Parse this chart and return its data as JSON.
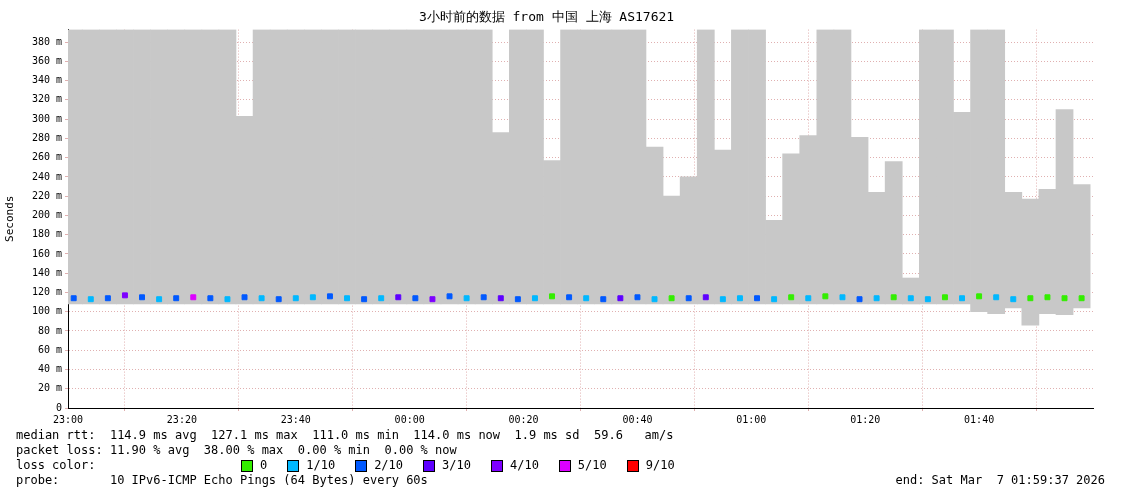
{
  "chart_data": {
    "type": "bar",
    "title": "3小时前的数据 from 中国 上海 AS17621",
    "ylabel": "Seconds",
    "xlim": [
      "2026-03-06T23:00",
      "2026-03-07T02:00"
    ],
    "ylim": [
      0,
      393
    ],
    "xticks": [
      {
        "value": "2026-03-06T23:00",
        "label": "23:00"
      },
      {
        "value": "2026-03-06T23:20",
        "label": "23:20"
      },
      {
        "value": "2026-03-06T23:40",
        "label": "23:40"
      },
      {
        "value": "2026-03-07T00:00",
        "label": "00:00"
      },
      {
        "value": "2026-03-07T00:20",
        "label": "00:20"
      },
      {
        "value": "2026-03-07T00:40",
        "label": "00:40"
      },
      {
        "value": "2026-03-07T01:00",
        "label": "01:00"
      },
      {
        "value": "2026-03-07T01:20",
        "label": "01:20"
      },
      {
        "value": "2026-03-07T01:40",
        "label": "01:40"
      }
    ],
    "yticks": [
      0,
      {
        "value": 20,
        "label": "20 m"
      },
      {
        "value": 40,
        "label": "40 m"
      },
      {
        "value": 60,
        "label": "60 m"
      },
      {
        "value": 80,
        "label": "80 m"
      },
      {
        "value": 100,
        "label": "100 m"
      },
      {
        "value": 120,
        "label": "120 m"
      },
      {
        "value": 140,
        "label": "140 m"
      },
      {
        "value": 160,
        "label": "160 m"
      },
      {
        "value": 180,
        "label": "180 m"
      },
      {
        "value": 200,
        "label": "200 m"
      },
      {
        "value": 220,
        "label": "220 m"
      },
      {
        "value": 240,
        "label": "240 m"
      },
      {
        "value": 260,
        "label": "260 m"
      },
      {
        "value": 280,
        "label": "280 m"
      },
      {
        "value": 300,
        "label": "300 m"
      },
      {
        "value": 320,
        "label": "320 m"
      },
      {
        "value": 340,
        "label": "340 m"
      },
      {
        "value": 360,
        "label": "360 m"
      },
      {
        "value": 380,
        "label": "380 m"
      }
    ],
    "grid": true,
    "legend": "bottom",
    "legend_title": "loss color:",
    "marker": "square",
    "x": [
      "2026-03-06T23:01",
      "2026-03-06T23:04",
      "2026-03-06T23:07",
      "2026-03-06T23:10",
      "2026-03-06T23:13",
      "2026-03-06T23:16",
      "2026-03-06T23:19",
      "2026-03-06T23:22",
      "2026-03-06T23:25",
      "2026-03-06T23:28",
      "2026-03-06T23:31",
      "2026-03-06T23:34",
      "2026-03-06T23:37",
      "2026-03-06T23:40",
      "2026-03-06T23:43",
      "2026-03-06T23:46",
      "2026-03-06T23:49",
      "2026-03-06T23:52",
      "2026-03-06T23:55",
      "2026-03-06T23:58",
      "2026-03-07T00:01",
      "2026-03-07T00:04",
      "2026-03-07T00:07",
      "2026-03-07T00:10",
      "2026-03-07T00:13",
      "2026-03-07T00:16",
      "2026-03-07T00:19",
      "2026-03-07T00:22",
      "2026-03-07T00:25",
      "2026-03-07T00:28",
      "2026-03-07T00:31",
      "2026-03-07T00:34",
      "2026-03-07T00:37",
      "2026-03-07T00:40",
      "2026-03-07T00:43",
      "2026-03-07T00:46",
      "2026-03-07T00:49",
      "2026-03-07T00:52",
      "2026-03-07T00:55",
      "2026-03-07T00:58",
      "2026-03-07T01:01",
      "2026-03-07T01:04",
      "2026-03-07T01:07",
      "2026-03-07T01:10",
      "2026-03-07T01:13",
      "2026-03-07T01:16",
      "2026-03-07T01:19",
      "2026-03-07T01:22",
      "2026-03-07T01:25",
      "2026-03-07T01:28",
      "2026-03-07T01:31",
      "2026-03-07T01:34",
      "2026-03-07T01:37",
      "2026-03-07T01:40",
      "2026-03-07T01:43",
      "2026-03-07T01:46",
      "2026-03-07T01:49",
      "2026-03-07T01:52",
      "2026-03-07T01:55",
      "2026-03-07T01:58"
    ],
    "series": [
      {
        "color": "#c8c8c8",
        "base": [
          108,
          108,
          108,
          108,
          108,
          108,
          108,
          108,
          108,
          108,
          108,
          108,
          108,
          108,
          108,
          108,
          108,
          108,
          108,
          108,
          108,
          108,
          108,
          108,
          108,
          108,
          108,
          108,
          108,
          108,
          108,
          108,
          108,
          108,
          108,
          108,
          108,
          108,
          108,
          108,
          108,
          108,
          108,
          108,
          108,
          108,
          108,
          108,
          108,
          108,
          108,
          108,
          108,
          100,
          98,
          104,
          86,
          98,
          97,
          104
        ],
        "values": [
          285,
          285,
          285,
          285,
          285,
          285,
          285,
          285,
          285,
          285,
          195,
          285,
          285,
          285,
          285,
          285,
          285,
          285,
          285,
          285,
          285,
          285,
          285,
          285,
          285,
          178,
          285,
          285,
          149,
          285,
          285,
          285,
          285,
          285,
          163,
          112,
          132,
          285,
          160,
          285,
          285,
          87,
          156,
          175,
          285,
          285,
          173,
          116,
          148,
          27,
          285,
          285,
          199,
          293,
          295,
          120,
          131,
          129,
          213,
          128
        ]
      },
      {
        "type": "scatter",
        "name": "0",
        "color": "#33ee00",
        "x": [
          "2026-03-07T00:25",
          "2026-03-07T00:46",
          "2026-03-07T01:07",
          "2026-03-07T01:13",
          "2026-03-07T01:25",
          "2026-03-07T01:34",
          "2026-03-07T01:40",
          "2026-03-07T01:49",
          "2026-03-07T01:52",
          "2026-03-07T01:55",
          "2026-03-07T01:58"
        ],
        "values": [
          116,
          114,
          115,
          116,
          115,
          115,
          116,
          114,
          115,
          114,
          114
        ]
      },
      {
        "type": "scatter",
        "name": "1/10",
        "color": "#00b8ff",
        "x": [
          "2026-03-06T23:04",
          "2026-03-06T23:16",
          "2026-03-06T23:28",
          "2026-03-06T23:34",
          "2026-03-06T23:40",
          "2026-03-06T23:43",
          "2026-03-06T23:49",
          "2026-03-06T23:55",
          "2026-03-07T00:10",
          "2026-03-07T00:22",
          "2026-03-07T00:31",
          "2026-03-07T00:43",
          "2026-03-07T00:55",
          "2026-03-07T00:58",
          "2026-03-07T01:04",
          "2026-03-07T01:10",
          "2026-03-07T01:16",
          "2026-03-07T01:22",
          "2026-03-07T01:28",
          "2026-03-07T01:31",
          "2026-03-07T01:37",
          "2026-03-07T01:43",
          "2026-03-07T01:46"
        ],
        "values": [
          113,
          113,
          113,
          114,
          114,
          115,
          114,
          114,
          114,
          114,
          114,
          113,
          113,
          114,
          113,
          114,
          115,
          114,
          114,
          113,
          114,
          115,
          113
        ]
      },
      {
        "type": "scatter",
        "name": "2/10",
        "color": "#0059ff",
        "x": [
          "2026-03-06T23:01",
          "2026-03-06T23:07",
          "2026-03-06T23:13",
          "2026-03-06T23:19",
          "2026-03-06T23:25",
          "2026-03-06T23:31",
          "2026-03-06T23:37",
          "2026-03-06T23:46",
          "2026-03-06T23:52",
          "2026-03-07T00:01",
          "2026-03-07T00:07",
          "2026-03-07T00:13",
          "2026-03-07T00:19",
          "2026-03-07T00:28",
          "2026-03-07T00:34",
          "2026-03-07T00:40",
          "2026-03-07T00:49",
          "2026-03-07T01:01",
          "2026-03-07T01:19"
        ],
        "values": [
          114,
          114,
          115,
          114,
          114,
          115,
          113,
          116,
          113,
          114,
          116,
          115,
          113,
          115,
          113,
          115,
          114,
          114,
          113
        ]
      },
      {
        "type": "scatter",
        "name": "3/10",
        "color": "#5e00ff",
        "x": [
          "2026-03-06T23:58",
          "2026-03-07T00:16",
          "2026-03-07T00:37",
          "2026-03-07T00:52"
        ],
        "values": [
          115,
          114,
          114,
          115
        ]
      },
      {
        "type": "scatter",
        "name": "4/10",
        "color": "#7e00ff",
        "x": [
          "2026-03-06T23:10",
          "2026-03-07T00:04"
        ],
        "values": [
          117,
          113
        ]
      },
      {
        "type": "scatter",
        "name": "5/10",
        "color": "#dd00ff",
        "x": [
          "2026-03-06T23:22"
        ],
        "values": [
          115
        ]
      },
      {
        "type": "scatter",
        "name": "9/10",
        "color": "#ff0000",
        "values": [
          null,
          null,
          null,
          null,
          null,
          null,
          null,
          null,
          null,
          null,
          null,
          null,
          null,
          null,
          null,
          null,
          null,
          null,
          null,
          null,
          null,
          null,
          null,
          null,
          null,
          null,
          null,
          null,
          null,
          null,
          null,
          null,
          null,
          null,
          null,
          null,
          null,
          null,
          null,
          null,
          null,
          null,
          null,
          null,
          null,
          null,
          null,
          null,
          null,
          null,
          null,
          null,
          null,
          null,
          null,
          null,
          null,
          null,
          null,
          null
        ]
      }
    ],
    "annotations": [
      "median rtt:  114.9 ms avg  127.1 ms max  111.0 ms min  114.0 ms now  1.9 ms sd  59.6   am/s",
      "packet loss: 11.90 % avg  38.00 % max  0.00 % min  0.00 % now",
      "probe:       10 IPv6-ICMP Echo Pings (64 Bytes) every 60s",
      "end: Sat Mar  7 01:59:37 2026"
    ]
  }
}
